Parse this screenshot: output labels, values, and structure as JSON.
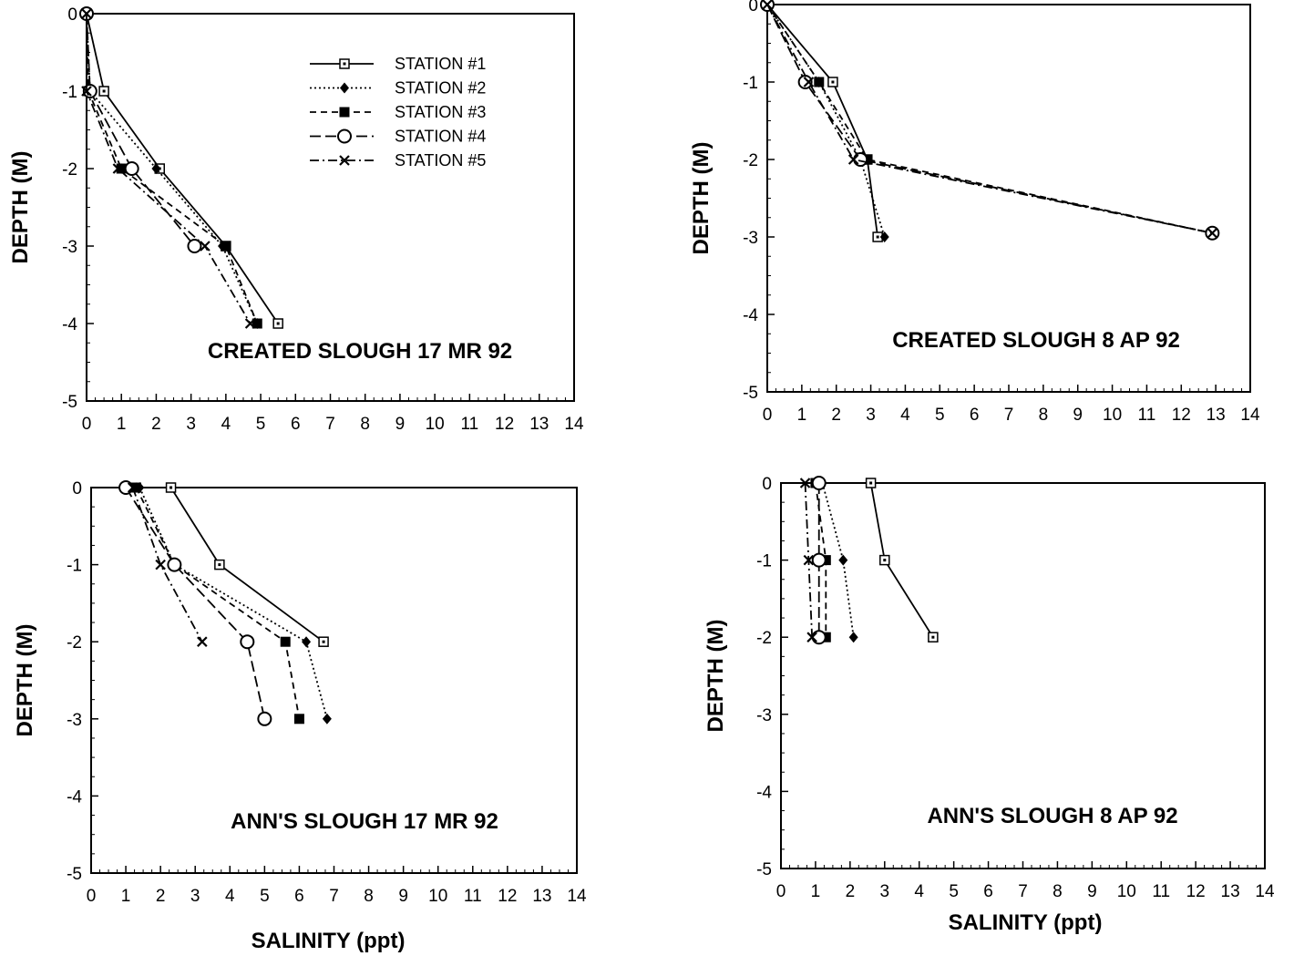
{
  "stations": [
    {
      "name": "STATION #1",
      "marker": "open-square",
      "dash": "solid"
    },
    {
      "name": "STATION #2",
      "marker": "diamond",
      "dash": "dotted"
    },
    {
      "name": "STATION #3",
      "marker": "filled-square",
      "dash": "dashed"
    },
    {
      "name": "STATION #4",
      "marker": "open-circle",
      "dash": "dashed-long"
    },
    {
      "name": "STATION #5",
      "marker": "x",
      "dash": "dash-dot"
    }
  ],
  "chart_data": [
    {
      "type": "line",
      "title": "CREATED SLOUGH 17 MR 92",
      "xlabel": "",
      "ylabel": "DEPTH (M)",
      "xlim": [
        0,
        14
      ],
      "ylim": [
        -5,
        0
      ],
      "xticks": [
        0,
        1,
        2,
        3,
        4,
        5,
        6,
        7,
        8,
        9,
        10,
        11,
        12,
        13,
        14
      ],
      "yticks": [
        0,
        -1,
        -2,
        -3,
        -4,
        -5
      ],
      "legend_placement": "top-right",
      "series": [
        {
          "name": "STATION #1",
          "points": [
            [
              0,
              0
            ],
            [
              0.5,
              -1
            ],
            [
              2.1,
              -2
            ],
            [
              4.0,
              -3
            ],
            [
              5.5,
              -4
            ]
          ]
        },
        {
          "name": "STATION #2",
          "points": [
            [
              0,
              0
            ],
            [
              0.1,
              -1
            ],
            [
              2.0,
              -2
            ],
            [
              3.9,
              -3
            ],
            [
              4.9,
              -4
            ]
          ]
        },
        {
          "name": "STATION #3",
          "points": [
            [
              0,
              0
            ],
            [
              0.05,
              -1
            ],
            [
              1.0,
              -2
            ],
            [
              4.0,
              -3
            ],
            [
              4.9,
              -4
            ]
          ]
        },
        {
          "name": "STATION #4",
          "points": [
            [
              0,
              0
            ],
            [
              0.1,
              -1
            ],
            [
              1.3,
              -2
            ],
            [
              3.1,
              -3
            ]
          ]
        },
        {
          "name": "STATION #5",
          "points": [
            [
              0,
              0
            ],
            [
              0,
              -1
            ],
            [
              0.9,
              -2
            ],
            [
              3.4,
              -3
            ],
            [
              4.7,
              -4
            ]
          ]
        }
      ]
    },
    {
      "type": "line",
      "title": "CREATED SLOUGH 8 AP 92",
      "xlabel": "",
      "ylabel": "DEPTH (M)",
      "xlim": [
        0,
        14
      ],
      "ylim": [
        -5,
        0
      ],
      "xticks": [
        0,
        1,
        2,
        3,
        4,
        5,
        6,
        7,
        8,
        9,
        10,
        11,
        12,
        13,
        14
      ],
      "yticks": [
        0,
        -1,
        -2,
        -3,
        -4,
        -5
      ],
      "series": [
        {
          "name": "STATION #1",
          "points": [
            [
              0,
              0
            ],
            [
              1.9,
              -1
            ],
            [
              2.9,
              -2
            ],
            [
              3.2,
              -3
            ]
          ]
        },
        {
          "name": "STATION #2",
          "points": [
            [
              0,
              0
            ],
            [
              1.5,
              -1
            ],
            [
              2.7,
              -2
            ],
            [
              3.4,
              -3
            ]
          ]
        },
        {
          "name": "STATION #3",
          "points": [
            [
              0,
              0
            ],
            [
              1.5,
              -1
            ],
            [
              2.9,
              -2
            ],
            [
              12.9,
              -2.95
            ]
          ]
        },
        {
          "name": "STATION #4",
          "points": [
            [
              0,
              0
            ],
            [
              1.1,
              -1
            ],
            [
              2.7,
              -2
            ],
            [
              12.9,
              -2.95
            ]
          ]
        },
        {
          "name": "STATION #5",
          "points": [
            [
              0,
              0
            ],
            [
              1.2,
              -1
            ],
            [
              2.5,
              -2
            ],
            [
              12.9,
              -2.95
            ]
          ]
        }
      ]
    },
    {
      "type": "line",
      "title": "ANN'S SLOUGH 17 MR 92",
      "xlabel": "SALINITY (ppt)",
      "ylabel": "DEPTH (M)",
      "xlim": [
        0,
        14
      ],
      "ylim": [
        -5,
        0
      ],
      "xticks": [
        0,
        1,
        2,
        3,
        4,
        5,
        6,
        7,
        8,
        9,
        10,
        11,
        12,
        13,
        14
      ],
      "yticks": [
        0,
        -1,
        -2,
        -3,
        -4,
        -5
      ],
      "series": [
        {
          "name": "STATION #1",
          "points": [
            [
              2.3,
              0
            ],
            [
              3.7,
              -1
            ],
            [
              6.7,
              -2
            ]
          ]
        },
        {
          "name": "STATION #2",
          "points": [
            [
              1.4,
              0
            ],
            [
              2.4,
              -1
            ],
            [
              6.2,
              -2
            ],
            [
              6.8,
              -3
            ]
          ]
        },
        {
          "name": "STATION #3",
          "points": [
            [
              1.3,
              0
            ],
            [
              2.4,
              -1
            ],
            [
              5.6,
              -2
            ],
            [
              6.0,
              -3
            ]
          ]
        },
        {
          "name": "STATION #4",
          "points": [
            [
              1.0,
              0
            ],
            [
              2.4,
              -1
            ],
            [
              4.5,
              -2
            ],
            [
              5.0,
              -3
            ]
          ]
        },
        {
          "name": "STATION #5",
          "points": [
            [
              1.2,
              0
            ],
            [
              2.0,
              -1
            ],
            [
              3.2,
              -2
            ]
          ]
        }
      ]
    },
    {
      "type": "line",
      "title": "ANN'S SLOUGH 8 AP 92",
      "xlabel": "SALINITY (ppt)",
      "ylabel": "DEPTH (M)",
      "xlim": [
        0,
        14
      ],
      "ylim": [
        -5,
        0
      ],
      "xticks": [
        0,
        1,
        2,
        3,
        4,
        5,
        6,
        7,
        8,
        9,
        10,
        11,
        12,
        13,
        14
      ],
      "yticks": [
        0,
        -1,
        -2,
        -3,
        -4,
        -5
      ],
      "series": [
        {
          "name": "STATION #1",
          "points": [
            [
              2.6,
              0
            ],
            [
              3.0,
              -1
            ],
            [
              4.4,
              -2
            ]
          ]
        },
        {
          "name": "STATION #2",
          "points": [
            [
              1.2,
              0
            ],
            [
              1.8,
              -1
            ],
            [
              2.1,
              -2
            ]
          ]
        },
        {
          "name": "STATION #3",
          "points": [
            [
              1.0,
              0
            ],
            [
              1.3,
              -1
            ],
            [
              1.3,
              -2
            ]
          ]
        },
        {
          "name": "STATION #4",
          "points": [
            [
              1.1,
              0
            ],
            [
              1.1,
              -1
            ],
            [
              1.1,
              -2
            ]
          ]
        },
        {
          "name": "STATION #5",
          "points": [
            [
              0.7,
              0
            ],
            [
              0.8,
              -1
            ],
            [
              0.9,
              -2
            ]
          ]
        }
      ]
    }
  ]
}
